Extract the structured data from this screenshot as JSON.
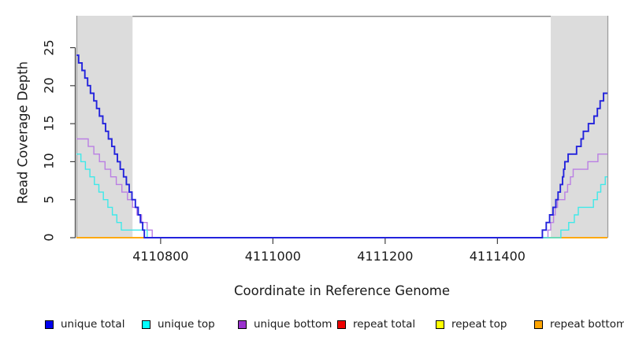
{
  "figure": {
    "kind": "read coverage depth step plot with shaded flanking repeat regions"
  },
  "axes": {
    "x": {
      "label": "Coordinate in Reference Genome",
      "range": [
        4110650,
        4111596
      ],
      "ticks": [
        {
          "value": 4110800,
          "label": "4110800"
        },
        {
          "value": 4111000,
          "label": "4111000"
        },
        {
          "value": 4111200,
          "label": "4111200"
        },
        {
          "value": 4111400,
          "label": "4111400"
        }
      ]
    },
    "y": {
      "label": "Read Coverage Depth",
      "range": [
        0,
        29.2
      ],
      "ticks": [
        {
          "value": 0,
          "label": "0"
        },
        {
          "value": 5,
          "label": "5"
        },
        {
          "value": 10,
          "label": "10"
        },
        {
          "value": 15,
          "label": "15"
        },
        {
          "value": 20,
          "label": "20"
        },
        {
          "value": 25,
          "label": "25"
        }
      ]
    }
  },
  "legend": {
    "items": [
      {
        "label": "unique total",
        "color": "#0000EE"
      },
      {
        "label": "unique top",
        "color": "#00FFFF"
      },
      {
        "label": "unique bottom",
        "color": "#9A32CD"
      },
      {
        "label": "repeat total",
        "color": "#EE0000"
      },
      {
        "label": "repeat top",
        "color": "#FFFF00"
      },
      {
        "label": "repeat bottom",
        "color": "#FFA500"
      }
    ]
  },
  "colors": {
    "shaded_region": "#DCDCDC",
    "plot_border": "#8a8a8a",
    "axis": "#404040"
  },
  "chart_data": {
    "type": "line",
    "step": true,
    "title": "",
    "xlabel": "Coordinate in Reference Genome",
    "ylabel": "Read Coverage Depth",
    "xlim": [
      4110650,
      4111596
    ],
    "ylim": [
      0,
      29.2
    ],
    "grid": false,
    "legend_position": "bottom",
    "shaded_regions": [
      {
        "from": 4110650,
        "to": 4110750
      },
      {
        "from": 4111495,
        "to": 4111596
      }
    ],
    "series": [
      {
        "name": "repeat total",
        "color": "#EE0000",
        "width": 1.2,
        "points": [
          [
            4110650,
            0
          ],
          [
            4111596,
            0
          ]
        ]
      },
      {
        "name": "repeat top",
        "color": "#FFFF00",
        "width": 1.2,
        "points": [
          [
            4110650,
            0
          ],
          [
            4111596,
            0
          ]
        ]
      },
      {
        "name": "repeat bottom",
        "color": "#FFA500",
        "width": 1.7,
        "points": [
          [
            4110650,
            0
          ],
          [
            4111596,
            0
          ]
        ]
      },
      {
        "name": "unique bottom",
        "color": "#BA7FE3",
        "width": 1.4,
        "points": [
          [
            4110650,
            13
          ],
          [
            4110671,
            12
          ],
          [
            4110681,
            11
          ],
          [
            4110691,
            10
          ],
          [
            4110701,
            9
          ],
          [
            4110711,
            8
          ],
          [
            4110721,
            7
          ],
          [
            4110731,
            6
          ],
          [
            4110741,
            5
          ],
          [
            4110750,
            4
          ],
          [
            4110758,
            3
          ],
          [
            4110766,
            2
          ],
          [
            4110776,
            1
          ],
          [
            4110785,
            0
          ],
          [
            4111490,
            1
          ],
          [
            4111495,
            2
          ],
          [
            4111500,
            3
          ],
          [
            4111503,
            4
          ],
          [
            4111507,
            5
          ],
          [
            4111520,
            6
          ],
          [
            4111525,
            7
          ],
          [
            4111530,
            8
          ],
          [
            4111535,
            9
          ],
          [
            4111561,
            10
          ],
          [
            4111579,
            11
          ],
          [
            4111596,
            11
          ]
        ]
      },
      {
        "name": "unique top",
        "color": "#3FE9E9",
        "width": 1.4,
        "points": [
          [
            4110650,
            11
          ],
          [
            4110658,
            10
          ],
          [
            4110666,
            9
          ],
          [
            4110674,
            8
          ],
          [
            4110682,
            7
          ],
          [
            4110690,
            6
          ],
          [
            4110698,
            5
          ],
          [
            4110706,
            4
          ],
          [
            4110714,
            3
          ],
          [
            4110722,
            2
          ],
          [
            4110730,
            1
          ],
          [
            4110776,
            0
          ],
          [
            4111513,
            1
          ],
          [
            4111527,
            2
          ],
          [
            4111537,
            3
          ],
          [
            4111544,
            4
          ],
          [
            4111571,
            5
          ],
          [
            4111578,
            6
          ],
          [
            4111584,
            7
          ],
          [
            4111592,
            8
          ],
          [
            4111596,
            8
          ]
        ]
      },
      {
        "name": "unique total",
        "color": "#2323DC",
        "width": 1.9,
        "points": [
          [
            4110650,
            24
          ],
          [
            4110654,
            23
          ],
          [
            4110660,
            22
          ],
          [
            4110665,
            21
          ],
          [
            4110670,
            20
          ],
          [
            4110675,
            19
          ],
          [
            4110681,
            18
          ],
          [
            4110686,
            17
          ],
          [
            4110691,
            16
          ],
          [
            4110697,
            15
          ],
          [
            4110702,
            14
          ],
          [
            4110707,
            13
          ],
          [
            4110713,
            12
          ],
          [
            4110718,
            11
          ],
          [
            4110723,
            10
          ],
          [
            4110728,
            9
          ],
          [
            4110734,
            8
          ],
          [
            4110739,
            7
          ],
          [
            4110744,
            6
          ],
          [
            4110749,
            5
          ],
          [
            4110755,
            4
          ],
          [
            4110760,
            3
          ],
          [
            4110764,
            2
          ],
          [
            4110768,
            1
          ],
          [
            4110771,
            0
          ],
          [
            4111480,
            1
          ],
          [
            4111487,
            2
          ],
          [
            4111493,
            3
          ],
          [
            4111499,
            4
          ],
          [
            4111504,
            5
          ],
          [
            4111508,
            6
          ],
          [
            4111512,
            7
          ],
          [
            4111516,
            8
          ],
          [
            4111518,
            9
          ],
          [
            4111520,
            10
          ],
          [
            4111526,
            11
          ],
          [
            4111541,
            12
          ],
          [
            4111549,
            13
          ],
          [
            4111553,
            14
          ],
          [
            4111562,
            15
          ],
          [
            4111572,
            16
          ],
          [
            4111578,
            17
          ],
          [
            4111583,
            18
          ],
          [
            4111589,
            19
          ],
          [
            4111596,
            19
          ]
        ]
      }
    ]
  }
}
